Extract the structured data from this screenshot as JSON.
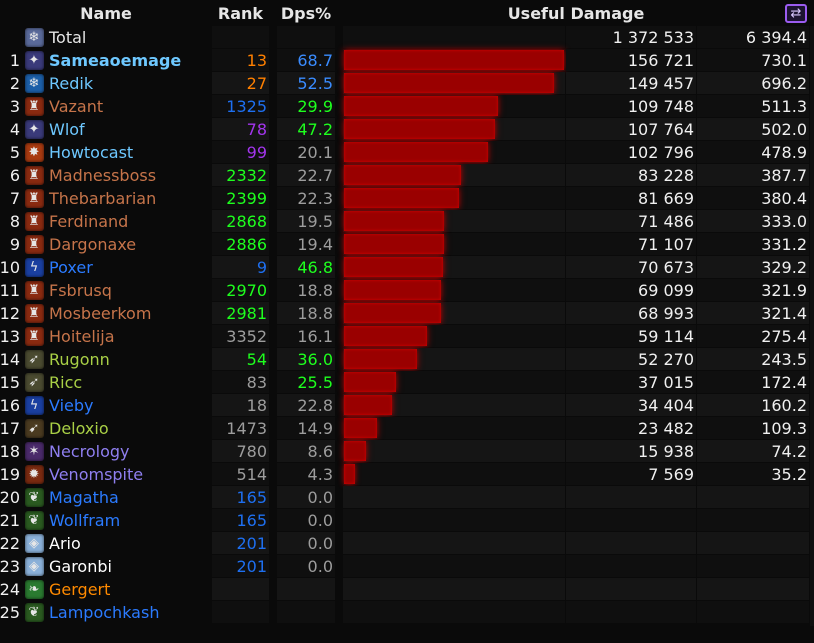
{
  "header": {
    "name": "Name",
    "rank": "Rank",
    "dps_pct": "Dps%",
    "useful_damage": "Useful Damage",
    "swap_icon": "swap-icon"
  },
  "total": {
    "label": "Total",
    "icon": "mage-frost-icon",
    "damage": "1 372 533",
    "dps": "6 394.4"
  },
  "max_damage": 156721,
  "rows": [
    {
      "num": "1",
      "name": "Sameaoemage",
      "name_color": "#6ec8ff",
      "bold": true,
      "rank": "13",
      "rank_color": "#ff8000",
      "dps_pct": "68.7",
      "dps_color": "#3a8cff",
      "damage": "156 721",
      "damage_value": 156721,
      "dps": "730.1",
      "icon": "mage-arcane-icon",
      "icon_bg": "#3a3a7a",
      "icon_glyph": "✦"
    },
    {
      "num": "2",
      "name": "Redik",
      "name_color": "#6ec8ff",
      "rank": "27",
      "rank_color": "#ff8000",
      "dps_pct": "52.5",
      "dps_color": "#3a8cff",
      "damage": "149 457",
      "damage_value": 149457,
      "dps": "696.2",
      "icon": "mage-frost-icon",
      "icon_bg": "#1c5fa8",
      "icon_glyph": "❄"
    },
    {
      "num": "3",
      "name": "Vazant",
      "name_color": "#c6744a",
      "rank": "1325",
      "rank_color": "#1e6ff0",
      "dps_pct": "29.9",
      "dps_color": "#1eff1e",
      "damage": "109 748",
      "damage_value": 109748,
      "dps": "511.3",
      "icon": "warrior-icon",
      "icon_bg": "#8a2a10",
      "icon_glyph": "♜"
    },
    {
      "num": "4",
      "name": "Wlof",
      "name_color": "#6ec8ff",
      "rank": "78",
      "rank_color": "#a335ee",
      "dps_pct": "47.2",
      "dps_color": "#1eff1e",
      "damage": "107 764",
      "damage_value": 107764,
      "dps": "502.0",
      "icon": "mage-arcane-icon",
      "icon_bg": "#3a3a7a",
      "icon_glyph": "✦"
    },
    {
      "num": "5",
      "name": "Howtocast",
      "name_color": "#6ec8ff",
      "rank": "99",
      "rank_color": "#a335ee",
      "dps_pct": "20.1",
      "dps_color": "#9d9d9d",
      "damage": "102 796",
      "damage_value": 102796,
      "dps": "478.9",
      "icon": "mage-fire-icon",
      "icon_bg": "#a83a10",
      "icon_glyph": "✸"
    },
    {
      "num": "6",
      "name": "Madnessboss",
      "name_color": "#c6744a",
      "rank": "2332",
      "rank_color": "#1eff1e",
      "dps_pct": "22.7",
      "dps_color": "#9d9d9d",
      "damage": "83 228",
      "damage_value": 83228,
      "dps": "387.7",
      "icon": "warrior-icon",
      "icon_bg": "#8a2a10",
      "icon_glyph": "♜"
    },
    {
      "num": "7",
      "name": "Thebarbarian",
      "name_color": "#c6744a",
      "rank": "2399",
      "rank_color": "#1eff1e",
      "dps_pct": "22.3",
      "dps_color": "#9d9d9d",
      "damage": "81 669",
      "damage_value": 81669,
      "dps": "380.4",
      "icon": "warrior-icon",
      "icon_bg": "#8a2a10",
      "icon_glyph": "♜"
    },
    {
      "num": "8",
      "name": "Ferdinand",
      "name_color": "#c6744a",
      "rank": "2868",
      "rank_color": "#1eff1e",
      "dps_pct": "19.5",
      "dps_color": "#9d9d9d",
      "damage": "71 486",
      "damage_value": 71486,
      "dps": "333.0",
      "icon": "warrior-icon",
      "icon_bg": "#8a2a10",
      "icon_glyph": "♜"
    },
    {
      "num": "9",
      "name": "Dargonaxe",
      "name_color": "#c6744a",
      "rank": "2886",
      "rank_color": "#1eff1e",
      "dps_pct": "19.4",
      "dps_color": "#9d9d9d",
      "damage": "71 107",
      "damage_value": 71107,
      "dps": "331.2",
      "icon": "warrior-icon",
      "icon_bg": "#8a2a10",
      "icon_glyph": "♜"
    },
    {
      "num": "10",
      "name": "Poxer",
      "name_color": "#2b7bff",
      "rank": "9",
      "rank_color": "#1e6ff0",
      "dps_pct": "46.8",
      "dps_color": "#1eff1e",
      "damage": "70 673",
      "damage_value": 70673,
      "dps": "329.2",
      "icon": "shaman-lightning-icon",
      "icon_bg": "#1a3fa0",
      "icon_glyph": "ϟ"
    },
    {
      "num": "11",
      "name": "Fsbrusq",
      "name_color": "#c6744a",
      "rank": "2970",
      "rank_color": "#1eff1e",
      "dps_pct": "18.8",
      "dps_color": "#9d9d9d",
      "damage": "69 099",
      "damage_value": 69099,
      "dps": "321.9",
      "icon": "warrior-icon",
      "icon_bg": "#8a2a10",
      "icon_glyph": "♜"
    },
    {
      "num": "12",
      "name": "Mosbeerkom",
      "name_color": "#c6744a",
      "rank": "2981",
      "rank_color": "#1eff1e",
      "dps_pct": "18.8",
      "dps_color": "#9d9d9d",
      "damage": "68 993",
      "damage_value": 68993,
      "dps": "321.4",
      "icon": "warrior-icon",
      "icon_bg": "#8a2a10",
      "icon_glyph": "♜"
    },
    {
      "num": "13",
      "name": "Hoitelija",
      "name_color": "#c6744a",
      "rank": "3352",
      "rank_color": "#9d9d9d",
      "dps_pct": "16.1",
      "dps_color": "#9d9d9d",
      "damage": "59 114",
      "damage_value": 59114,
      "dps": "275.4",
      "icon": "warrior-icon",
      "icon_bg": "#8a2a10",
      "icon_glyph": "♜"
    },
    {
      "num": "14",
      "name": "Rugonn",
      "name_color": "#a9d046",
      "rank": "54",
      "rank_color": "#1eff1e",
      "dps_pct": "36.0",
      "dps_color": "#1eff1e",
      "damage": "52 270",
      "damage_value": 52270,
      "dps": "243.5",
      "icon": "hunter-icon",
      "icon_bg": "#4a4a30",
      "icon_glyph": "➶"
    },
    {
      "num": "15",
      "name": "Ricc",
      "name_color": "#a9d046",
      "rank": "83",
      "rank_color": "#9d9d9d",
      "dps_pct": "25.5",
      "dps_color": "#1eff1e",
      "damage": "37 015",
      "damage_value": 37015,
      "dps": "172.4",
      "icon": "hunter-icon",
      "icon_bg": "#4a4a30",
      "icon_glyph": "➶"
    },
    {
      "num": "16",
      "name": "Vieby",
      "name_color": "#2b7bff",
      "rank": "18",
      "rank_color": "#9d9d9d",
      "dps_pct": "22.8",
      "dps_color": "#9d9d9d",
      "damage": "34 404",
      "damage_value": 34404,
      "dps": "160.2",
      "icon": "shaman-lightning-icon",
      "icon_bg": "#1a3fa0",
      "icon_glyph": "ϟ"
    },
    {
      "num": "17",
      "name": "Deloxio",
      "name_color": "#a9d046",
      "rank": "1473",
      "rank_color": "#9d9d9d",
      "dps_pct": "14.9",
      "dps_color": "#9d9d9d",
      "damage": "23 482",
      "damage_value": 23482,
      "dps": "109.3",
      "icon": "hunter-icon",
      "icon_bg": "#4a3a20",
      "icon_glyph": "➹"
    },
    {
      "num": "18",
      "name": "Necrology",
      "name_color": "#8f7ff0",
      "rank": "780",
      "rank_color": "#9d9d9d",
      "dps_pct": "8.6",
      "dps_color": "#9d9d9d",
      "damage": "15 938",
      "damage_value": 15938,
      "dps": "74.2",
      "icon": "warlock-icon",
      "icon_bg": "#4a2a6a",
      "icon_glyph": "✶"
    },
    {
      "num": "19",
      "name": "Venomspite",
      "name_color": "#8f7ff0",
      "rank": "514",
      "rank_color": "#9d9d9d",
      "dps_pct": "4.3",
      "dps_color": "#9d9d9d",
      "damage": "7 569",
      "damage_value": 7569,
      "dps": "35.2",
      "icon": "warlock-fire-icon",
      "icon_bg": "#7a2a10",
      "icon_glyph": "✹"
    },
    {
      "num": "20",
      "name": "Magatha",
      "name_color": "#2b7bff",
      "rank": "165",
      "rank_color": "#1e6ff0",
      "dps_pct": "0.0",
      "dps_color": "#9d9d9d",
      "damage": "",
      "damage_value": 0,
      "dps": "",
      "icon": "druid-nature-icon",
      "icon_bg": "#2a5a20",
      "icon_glyph": "❦"
    },
    {
      "num": "21",
      "name": "Wollfram",
      "name_color": "#2b7bff",
      "rank": "165",
      "rank_color": "#1e6ff0",
      "dps_pct": "0.0",
      "dps_color": "#9d9d9d",
      "damage": "",
      "damage_value": 0,
      "dps": "",
      "icon": "druid-nature-icon",
      "icon_bg": "#2a5a20",
      "icon_glyph": "❦"
    },
    {
      "num": "22",
      "name": "Ario",
      "name_color": "#ffffff",
      "rank": "201",
      "rank_color": "#1e6ff0",
      "dps_pct": "0.0",
      "dps_color": "#9d9d9d",
      "damage": "",
      "damage_value": 0,
      "dps": "",
      "icon": "priest-holy-icon",
      "icon_bg": "#8ab0d8",
      "icon_glyph": "◈"
    },
    {
      "num": "23",
      "name": "Garonbi",
      "name_color": "#ffffff",
      "rank": "201",
      "rank_color": "#1e6ff0",
      "dps_pct": "0.0",
      "dps_color": "#9d9d9d",
      "damage": "",
      "damage_value": 0,
      "dps": "",
      "icon": "priest-holy-icon",
      "icon_bg": "#8ab0d8",
      "icon_glyph": "◈"
    },
    {
      "num": "24",
      "name": "Gergert",
      "name_color": "#ff8a00",
      "rank": "",
      "rank_color": "#9d9d9d",
      "dps_pct": "",
      "dps_color": "#9d9d9d",
      "damage": "",
      "damage_value": 0,
      "dps": "",
      "icon": "druid-heal-icon",
      "icon_bg": "#2a7a30",
      "icon_glyph": "❧"
    },
    {
      "num": "25",
      "name": "Lampochkash",
      "name_color": "#2b7bff",
      "rank": "",
      "rank_color": "#9d9d9d",
      "dps_pct": "",
      "dps_color": "#9d9d9d",
      "damage": "",
      "damage_value": 0,
      "dps": "",
      "icon": "druid-nature-icon",
      "icon_bg": "#2a5a20",
      "icon_glyph": "❦"
    }
  ]
}
